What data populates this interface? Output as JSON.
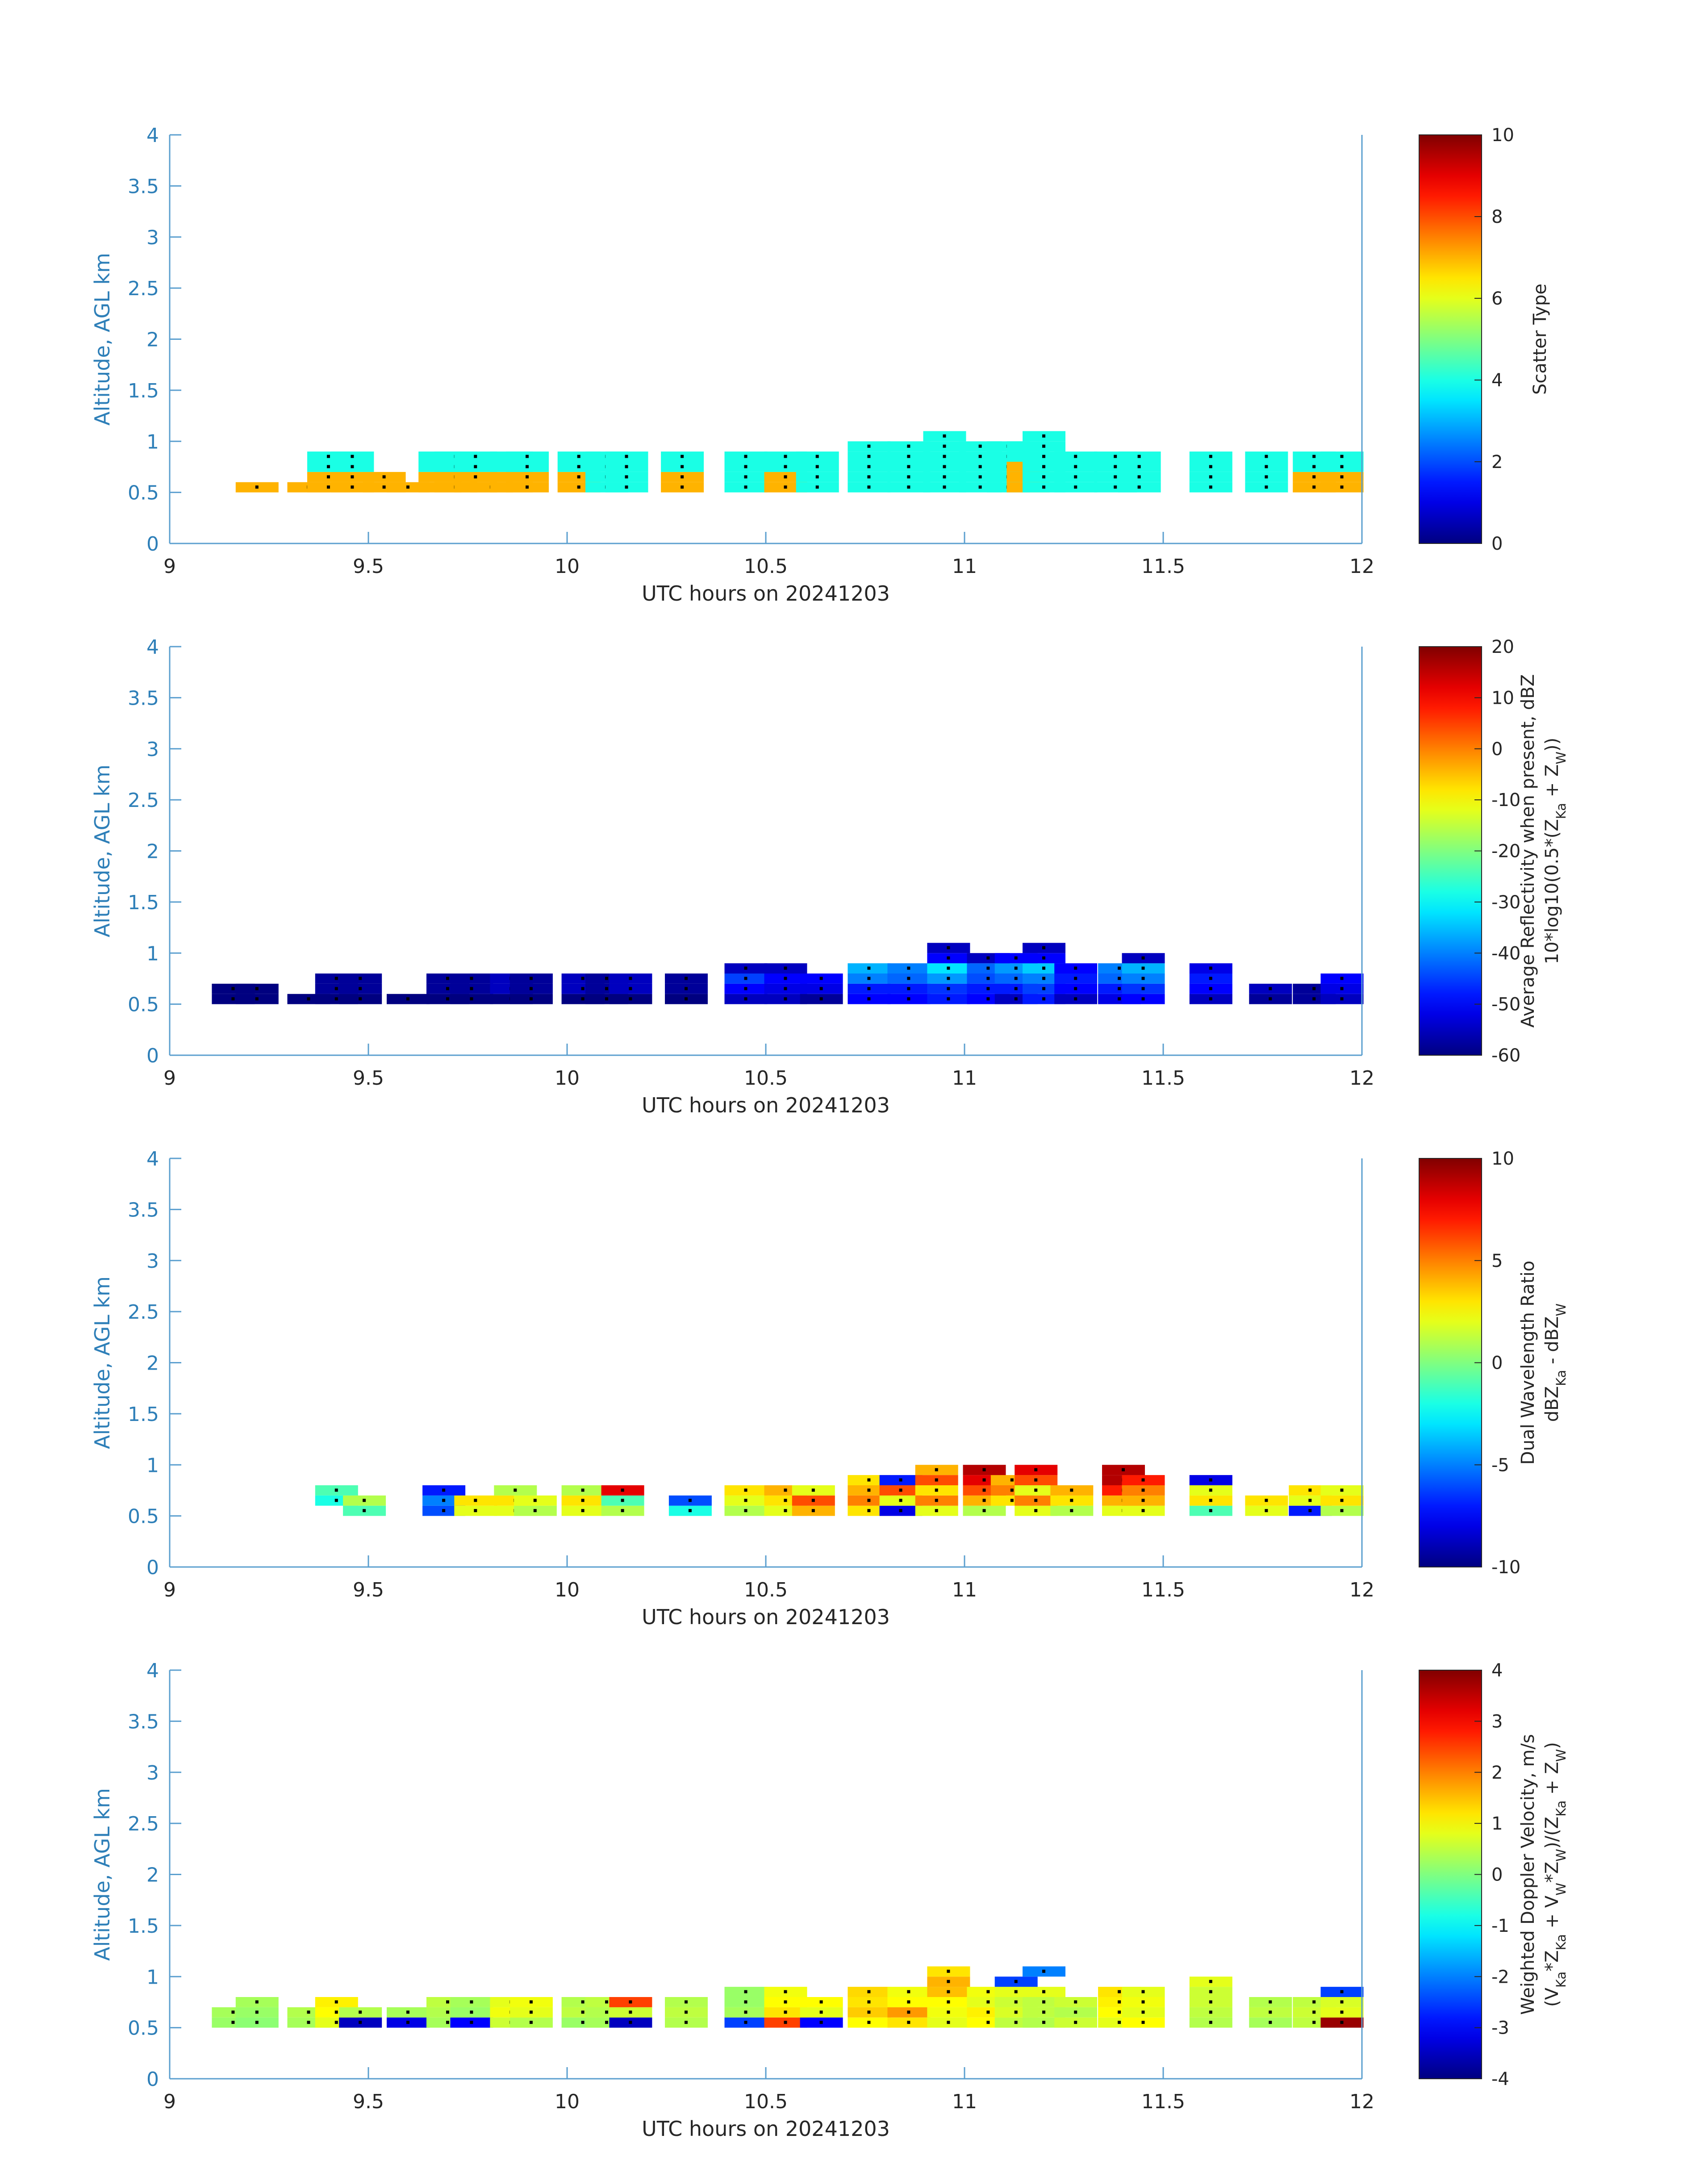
{
  "chart_data": [
    {
      "type": "heatmap",
      "title": "",
      "xlabel": "UTC hours on 20241203",
      "ylabel": "Altitude, AGL km",
      "xlim": [
        9,
        12
      ],
      "ylim": [
        0,
        4
      ],
      "xticks": [
        "9",
        "9.5",
        "10",
        "10.5",
        "11",
        "11.5",
        "12"
      ],
      "yticks": [
        "0",
        "0.5",
        "1",
        "1.5",
        "2",
        "2.5",
        "3",
        "3.5",
        "4"
      ],
      "colorbar": {
        "label_lines": [
          "Scatter Type"
        ],
        "clim": [
          0,
          10
        ],
        "ticks": [
          "0",
          "2",
          "4",
          "6",
          "8",
          "10"
        ],
        "colormap": "jet"
      },
      "grid": false,
      "x": [
        9.22,
        9.35,
        9.4,
        9.46,
        9.54,
        9.6,
        9.68,
        9.72,
        9.77,
        9.81,
        9.86,
        9.9,
        10.03,
        10.1,
        10.15,
        10.29,
        10.45,
        10.55,
        10.63,
        10.76,
        10.86,
        10.95,
        11.04,
        11.11,
        11.16,
        11.2,
        11.28,
        11.38,
        11.44,
        11.62,
        11.76,
        11.88,
        11.95
      ],
      "series": [
        {
          "values": [
            [
              7,
              7,
              7,
              7,
              7,
              7,
              7,
              7,
              7,
              7,
              7,
              7,
              7,
              4,
              4,
              7,
              4,
              7,
              4,
              4,
              4,
              4,
              4,
              4,
              7,
              4,
              4,
              4,
              4,
              4,
              4,
              7,
              7
            ],
            [
              0,
              0,
              7,
              7,
              7,
              0,
              7,
              7,
              7,
              0,
              7,
              7,
              7,
              4,
              4,
              7,
              4,
              7,
              4,
              4,
              4,
              4,
              4,
              4,
              7,
              4,
              4,
              4,
              4,
              4,
              4,
              7,
              7
            ],
            [
              0,
              0,
              4,
              4,
              0,
              0,
              4,
              4,
              4,
              0,
              4,
              4,
              4,
              4,
              4,
              4,
              4,
              4,
              4,
              4,
              4,
              4,
              4,
              4,
              7,
              4,
              4,
              4,
              4,
              4,
              4,
              4,
              4
            ],
            [
              0,
              0,
              4,
              4,
              0,
              0,
              4,
              4,
              4,
              0,
              4,
              4,
              4,
              4,
              4,
              4,
              4,
              4,
              4,
              4,
              4,
              4,
              4,
              4,
              4,
              4,
              4,
              4,
              4,
              4,
              4,
              4,
              4
            ],
            [
              0,
              0,
              0,
              0,
              0,
              0,
              0,
              0,
              0,
              0,
              0,
              0,
              0,
              0,
              0,
              0,
              0,
              0,
              0,
              4,
              4,
              4,
              4,
              4,
              4,
              4,
              0,
              0,
              0,
              0,
              0,
              0,
              0
            ],
            [
              0,
              0,
              0,
              0,
              0,
              0,
              0,
              0,
              0,
              0,
              0,
              0,
              0,
              0,
              0,
              0,
              0,
              0,
              0,
              0,
              0,
              4,
              0,
              0,
              0,
              4,
              0,
              0,
              0,
              0,
              0,
              0,
              0
            ]
          ]
        }
      ],
      "y_bins_km": [
        0.55,
        0.65,
        0.75,
        0.85,
        0.95,
        1.05
      ]
    },
    {
      "type": "heatmap",
      "title": "",
      "xlabel": "UTC hours on 20241203",
      "ylabel": "Altitude, AGL km",
      "xlim": [
        9,
        12
      ],
      "ylim": [
        0,
        4
      ],
      "xticks": [
        "9",
        "9.5",
        "10",
        "10.5",
        "11",
        "11.5",
        "12"
      ],
      "yticks": [
        "0",
        "0.5",
        "1",
        "1.5",
        "2",
        "2.5",
        "3",
        "3.5",
        "4"
      ],
      "colorbar": {
        "label_lines": [
          "Average Reflectivity when present, dBZ",
          "10*log10(0.5*(Z_Ka + Z_W))"
        ],
        "clim": [
          -60,
          20
        ],
        "ticks": [
          "-60",
          "-50",
          "-40",
          "-30",
          "-20",
          "-10",
          "0",
          "10",
          "20"
        ],
        "colormap": "jet"
      },
      "grid": false,
      "x": [
        9.16,
        9.22,
        9.35,
        9.42,
        9.48,
        9.6,
        9.7,
        9.76,
        9.86,
        9.91,
        10.04,
        10.1,
        10.16,
        10.3,
        10.45,
        10.55,
        10.64,
        10.76,
        10.86,
        10.96,
        11.06,
        11.13,
        11.2,
        11.28,
        11.39,
        11.45,
        11.62,
        11.77,
        11.88,
        11.95
      ],
      "series": [
        {
          "values": [
            [
              -60,
              -60,
              -60,
              -60,
              -60,
              -60,
              -60,
              -60,
              -60,
              -60,
              -60,
              -60,
              -60,
              -60,
              -55,
              -55,
              -58,
              -50,
              -50,
              -48,
              -50,
              -55,
              -48,
              -55,
              -52,
              -50,
              -55,
              -58,
              -58,
              -55
            ],
            [
              -60,
              -60,
              0,
              -58,
              -58,
              0,
              -58,
              -58,
              -55,
              -58,
              -55,
              -58,
              -55,
              -58,
              -50,
              -52,
              -52,
              -48,
              -48,
              -46,
              -48,
              -48,
              -45,
              -50,
              -48,
              -46,
              -50,
              -55,
              -58,
              -52
            ],
            [
              0,
              0,
              0,
              -58,
              -58,
              0,
              -58,
              -58,
              -55,
              -58,
              -55,
              -58,
              -55,
              -58,
              -45,
              -50,
              -50,
              -40,
              -42,
              -38,
              -44,
              -42,
              -40,
              -48,
              -42,
              -40,
              -48,
              0,
              0,
              -50
            ],
            [
              0,
              0,
              0,
              0,
              0,
              0,
              0,
              0,
              0,
              0,
              0,
              0,
              0,
              0,
              -55,
              -55,
              0,
              -36,
              -40,
              -32,
              -42,
              -38,
              -34,
              -50,
              -40,
              -36,
              -52,
              0,
              0,
              0
            ],
            [
              0,
              0,
              0,
              0,
              0,
              0,
              0,
              0,
              0,
              0,
              0,
              0,
              0,
              0,
              0,
              0,
              0,
              0,
              0,
              -50,
              -55,
              -50,
              -50,
              0,
              0,
              -55,
              0,
              0,
              0,
              0
            ],
            [
              0,
              0,
              0,
              0,
              0,
              0,
              0,
              0,
              0,
              0,
              0,
              0,
              0,
              0,
              0,
              0,
              0,
              0,
              0,
              -55,
              0,
              0,
              -55,
              0,
              0,
              0,
              0,
              0,
              0,
              0
            ]
          ]
        }
      ],
      "y_bins_km": [
        0.55,
        0.65,
        0.75,
        0.85,
        0.95,
        1.05
      ]
    },
    {
      "type": "heatmap",
      "title": "",
      "xlabel": "UTC hours on 20241203",
      "ylabel": "Altitude, AGL km",
      "xlim": [
        9,
        12
      ],
      "ylim": [
        0,
        4
      ],
      "xticks": [
        "9",
        "9.5",
        "10",
        "10.5",
        "11",
        "11.5",
        "12"
      ],
      "yticks": [
        "0",
        "0.5",
        "1",
        "1.5",
        "2",
        "2.5",
        "3",
        "3.5",
        "4"
      ],
      "colorbar": {
        "label_lines": [
          "Dual Wavelength Ratio",
          "dBZ_Ka - dBZ_W"
        ],
        "clim": [
          -10,
          10
        ],
        "ticks": [
          "-10",
          "-5",
          "0",
          "5",
          "10"
        ],
        "colormap": "jet"
      },
      "grid": false,
      "x": [
        9.42,
        9.49,
        9.69,
        9.77,
        9.87,
        9.92,
        10.04,
        10.14,
        10.31,
        10.45,
        10.55,
        10.62,
        10.76,
        10.84,
        10.93,
        11.05,
        11.12,
        11.18,
        11.27,
        11.4,
        11.45,
        11.62,
        11.76,
        11.87,
        11.95
      ],
      "series": [
        {
          "values": [
            [
              0,
              -1,
              -6,
              2,
              2,
              1,
              2,
              1,
              -2,
              1,
              2,
              4,
              3,
              -8,
              2,
              1,
              0,
              2,
              1,
              2,
              2,
              -1,
              2,
              -7,
              1
            ],
            [
              -2,
              1,
              -5,
              3,
              3,
              2,
              3,
              -1,
              -6,
              2,
              3,
              6,
              5,
              2,
              5,
              4,
              3,
              5,
              3,
              4,
              4,
              3,
              3,
              2,
              3
            ],
            [
              -1,
              0,
              -7,
              0,
              1,
              0,
              1,
              8,
              0,
              3,
              4,
              2,
              4,
              6,
              3,
              6,
              5,
              2,
              4,
              7,
              5,
              2,
              0,
              3,
              2
            ],
            [
              0,
              0,
              0,
              0,
              0,
              0,
              0,
              0,
              0,
              0,
              0,
              0,
              3,
              -7,
              6,
              8,
              4,
              6,
              0,
              9,
              7,
              -8,
              0,
              0,
              0
            ],
            [
              0,
              0,
              0,
              0,
              0,
              0,
              0,
              0,
              0,
              0,
              0,
              0,
              0,
              0,
              4,
              9,
              0,
              8,
              0,
              9,
              0,
              0,
              0,
              0,
              0
            ]
          ]
        }
      ],
      "y_bins_km": [
        0.55,
        0.65,
        0.75,
        0.85,
        0.95
      ]
    },
    {
      "type": "heatmap",
      "title": "",
      "xlabel": "UTC hours on 20241203",
      "ylabel": "Altitude, AGL km",
      "xlim": [
        9,
        12
      ],
      "ylim": [
        0,
        4
      ],
      "xticks": [
        "9",
        "9.5",
        "10",
        "10.5",
        "11",
        "11.5",
        "12"
      ],
      "yticks": [
        "0",
        "0.5",
        "1",
        "1.5",
        "2",
        "2.5",
        "3",
        "3.5",
        "4"
      ],
      "colorbar": {
        "label_lines": [
          "Weighted Doppler Velocity, m/s",
          "(V_Ka*Z_Ka + V_W*Z_W)/(Z_Ka + Z_W)"
        ],
        "clim": [
          -4,
          4
        ],
        "ticks": [
          "-4",
          "-3",
          "-2",
          "-1",
          "0",
          "1",
          "2",
          "3",
          "4"
        ],
        "colormap": "jet"
      },
      "grid": false,
      "x": [
        9.16,
        9.22,
        9.35,
        9.42,
        9.48,
        9.6,
        9.7,
        9.76,
        9.86,
        9.91,
        10.04,
        10.1,
        10.16,
        10.3,
        10.45,
        10.55,
        10.64,
        10.76,
        10.86,
        10.96,
        11.06,
        11.13,
        11.2,
        11.28,
        11.39,
        11.45,
        11.62,
        11.77,
        11.88,
        11.95
      ],
      "series": [
        {
          "values": [
            [
              0.2,
              0.1,
              0.3,
              0.8,
              -3.5,
              -3.2,
              0.3,
              -3.0,
              0.6,
              0.4,
              0.2,
              0.3,
              -3.5,
              0.4,
              -2.5,
              2.5,
              -3.0,
              1.0,
              1.2,
              0.8,
              1.0,
              0.5,
              0.4,
              0.6,
              0.8,
              1.0,
              0.4,
              0.3,
              0.5,
              3.8
            ],
            [
              0.3,
              0.2,
              0.4,
              1.0,
              0.4,
              0.3,
              0.4,
              0.2,
              0.9,
              0.8,
              0.5,
              0.4,
              0.6,
              0.5,
              0.3,
              1.2,
              0.8,
              1.4,
              1.8,
              0.9,
              1.1,
              0.7,
              0.5,
              0.4,
              1.0,
              0.8,
              0.5,
              0.5,
              0.6,
              0.8
            ],
            [
              0,
              0.3,
              0,
              1.1,
              0,
              0,
              0.5,
              0.3,
              0.8,
              0.9,
              0.4,
              0.5,
              2.5,
              0.4,
              0.2,
              1.0,
              1.0,
              1.2,
              1.0,
              1.0,
              0.8,
              0.6,
              0.5,
              0.6,
              1.1,
              0.9,
              0.6,
              0.4,
              0.5,
              0.7
            ],
            [
              0,
              0,
              0,
              0,
              0,
              0,
              0,
              0,
              0,
              0,
              0,
              0,
              0,
              0,
              0.2,
              0.9,
              0,
              1.3,
              0.9,
              1.5,
              0.9,
              0.8,
              0.8,
              0,
              1.2,
              0.8,
              0.6,
              0,
              0,
              -2.5
            ],
            [
              0,
              0,
              0,
              0,
              0,
              0,
              0,
              0,
              0,
              0,
              0,
              0,
              0,
              0,
              0,
              0,
              0,
              0,
              0,
              1.6,
              0,
              -2.5,
              0,
              0,
              0,
              0,
              0.8,
              0,
              0,
              0
            ],
            [
              0,
              0,
              0,
              0,
              0,
              0,
              0,
              0,
              0,
              0,
              0,
              0,
              0,
              0,
              0,
              0,
              0,
              0,
              0,
              1.2,
              0,
              0,
              -2.0,
              0,
              0,
              0,
              0,
              0,
              0,
              0
            ]
          ]
        }
      ],
      "y_bins_km": [
        0.55,
        0.65,
        0.75,
        0.85,
        0.95,
        1.05
      ]
    }
  ],
  "colors": {
    "axis": "#2e7fb8",
    "tick_text": "#2e7fb8",
    "xlabel_text": "#262626",
    "colorbar_text": "#262626",
    "axis_box": "#5b9fcf"
  }
}
